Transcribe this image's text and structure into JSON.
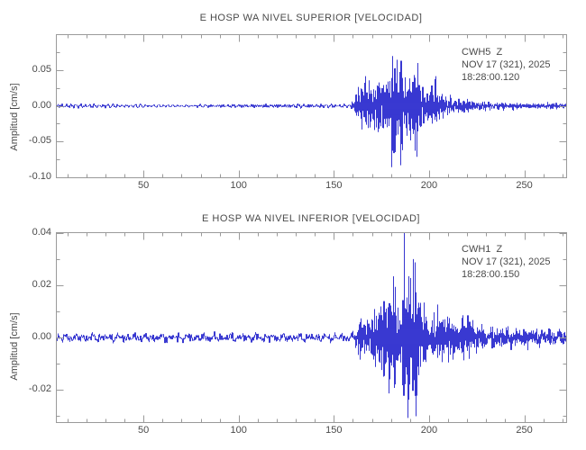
{
  "figure": {
    "background": "#ffffff",
    "trace_color": "#2222cc",
    "axis_color": "#9a9a9a",
    "text_color": "#4a4a4a"
  },
  "chart_data": [
    {
      "type": "line",
      "kind": "seismogram",
      "title": "E HOSP WA NIVEL SUPERIOR [VELOCIDAD]",
      "ylabel": "Amplitud [cm/s]",
      "legend": {
        "station": "CWH5  Z",
        "date": "NOV 17 (321), 2025",
        "time": "18:28:00.120",
        "position": "top-right"
      },
      "xlim": [
        4,
        272
      ],
      "ylim": [
        -0.1005,
        0.1005
      ],
      "x_ticks": [
        50,
        100,
        150,
        200,
        250
      ],
      "x_minor_step": 10,
      "y_ticks": [
        {
          "value": 0.05,
          "label": "0.05"
        },
        {
          "value": 0.0,
          "label": "0.00"
        },
        {
          "value": -0.05,
          "label": "-0.05"
        },
        {
          "value": -0.1,
          "label": "-0.10"
        }
      ],
      "y_minor_step": 0.025,
      "grid": false,
      "noise_amp_cm_s": 0.0028,
      "envelope_cm_s": [
        [
          4,
          0
        ],
        [
          158,
          0
        ],
        [
          161,
          0.008
        ],
        [
          163,
          0.05
        ],
        [
          166,
          0.046
        ],
        [
          169,
          0.068
        ],
        [
          172,
          0.048
        ],
        [
          176,
          0.052
        ],
        [
          179,
          0.072
        ],
        [
          181,
          0.098
        ],
        [
          183,
          0.062
        ],
        [
          185,
          0.09
        ],
        [
          187,
          0.078
        ],
        [
          190,
          0.058
        ],
        [
          194,
          0.06
        ],
        [
          198,
          0.042
        ],
        [
          203,
          0.03
        ],
        [
          208,
          0.022
        ],
        [
          213,
          0.014
        ],
        [
          218,
          0.009
        ],
        [
          225,
          0.006
        ],
        [
          235,
          0.005
        ],
        [
          250,
          0.004
        ],
        [
          272,
          0.0035
        ]
      ],
      "seed": 1337
    },
    {
      "type": "line",
      "kind": "seismogram",
      "title": "E HOSP WA NIVEL INFERIOR [VELOCIDAD]",
      "ylabel": "Amplitud [cm/s]",
      "legend": {
        "station": "CWH1  Z",
        "date": "NOV 17 (321), 2025",
        "time": "18:28:00.150",
        "position": "top-right"
      },
      "xlim": [
        4,
        272
      ],
      "ylim": [
        -0.0324,
        0.0403
      ],
      "x_ticks": [
        50,
        100,
        150,
        200,
        250
      ],
      "x_minor_step": 10,
      "y_ticks": [
        {
          "value": 0.04,
          "label": "0.04"
        },
        {
          "value": 0.02,
          "label": "0.02"
        },
        {
          "value": 0.0,
          "label": "0.00"
        },
        {
          "value": -0.02,
          "label": "-0.02"
        }
      ],
      "y_minor_step": 0.01,
      "grid": false,
      "noise_amp_cm_s": 0.0018,
      "envelope_cm_s": [
        [
          4,
          0
        ],
        [
          158,
          0
        ],
        [
          162,
          0.005
        ],
        [
          164,
          0.014
        ],
        [
          168,
          0.012
        ],
        [
          171,
          0.017
        ],
        [
          174,
          0.012
        ],
        [
          178,
          0.015
        ],
        [
          181,
          0.022
        ],
        [
          183,
          0.031
        ],
        [
          185,
          0.027
        ],
        [
          187,
          0.039
        ],
        [
          189,
          0.033
        ],
        [
          191,
          0.027
        ],
        [
          193,
          0.03
        ],
        [
          196,
          0.019
        ],
        [
          200,
          0.013
        ],
        [
          204,
          0.01
        ],
        [
          208,
          0.008
        ],
        [
          212,
          0.007
        ],
        [
          216,
          0.0095
        ],
        [
          220,
          0.008
        ],
        [
          224,
          0.006
        ],
        [
          230,
          0.005
        ],
        [
          240,
          0.004
        ],
        [
          255,
          0.0035
        ],
        [
          272,
          0.003
        ]
      ],
      "seed": 7331
    }
  ]
}
